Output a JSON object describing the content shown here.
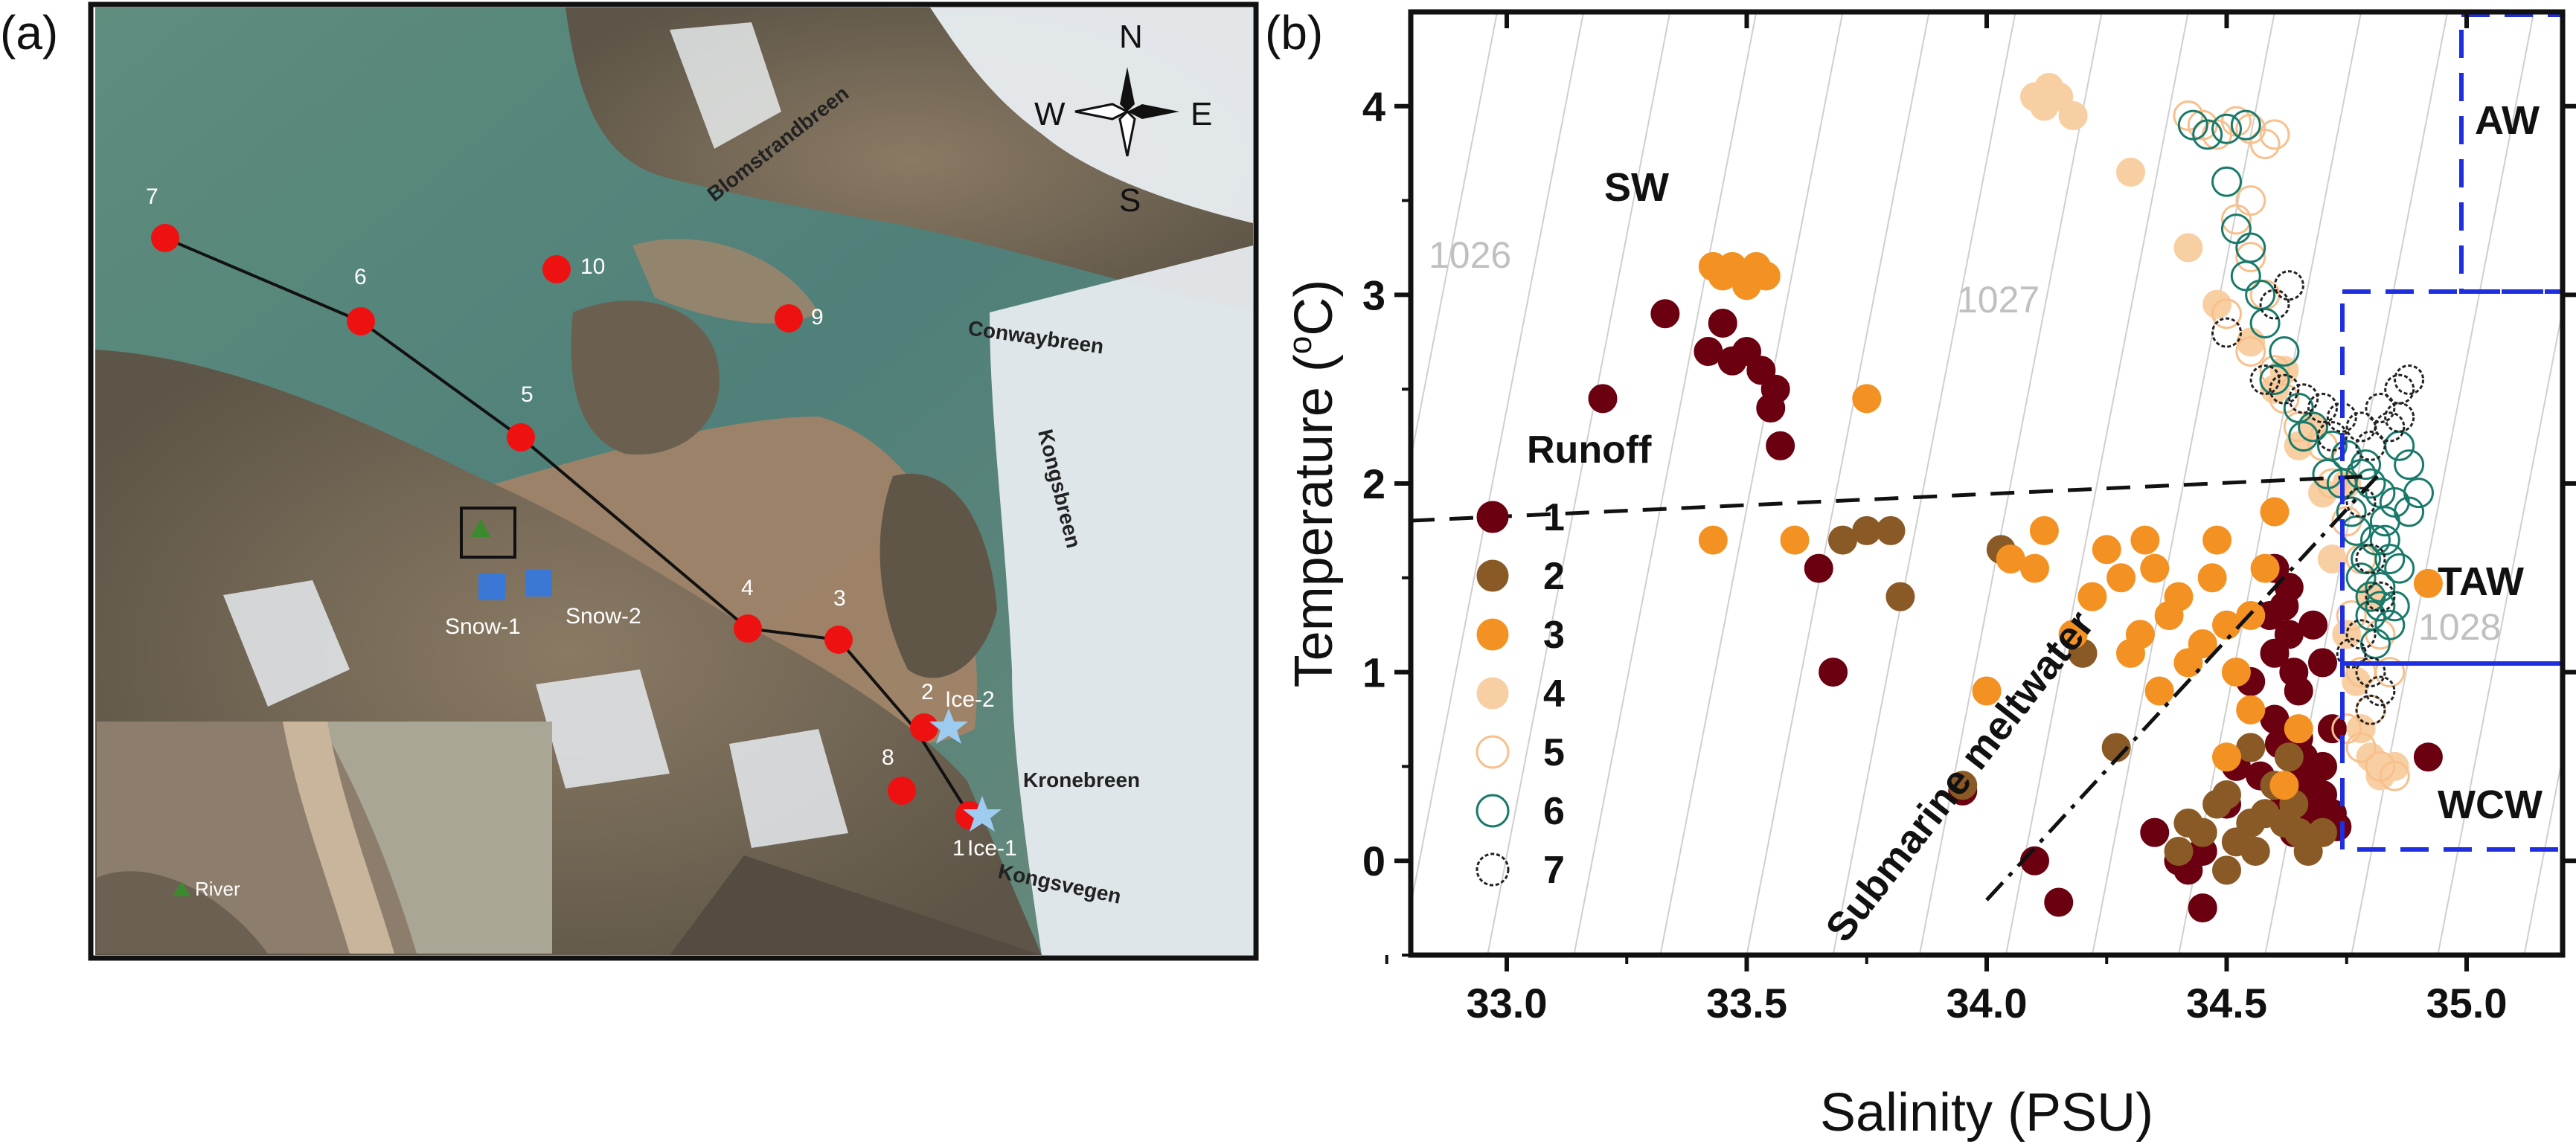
{
  "panel_a": {
    "label": "(a)",
    "compass": {
      "n": "N",
      "s": "S",
      "w": "W",
      "e": "E"
    },
    "glaciers": [
      "Blomstrandbreen",
      "Conwaybreen",
      "Kongsbreen",
      "Kronebreen",
      "Kongsvegen"
    ],
    "stations": [
      "7",
      "6",
      "10",
      "9",
      "5",
      "4",
      "3",
      "2",
      "8",
      "1"
    ],
    "ice_sites": [
      "Ice-2",
      "Ice-1"
    ],
    "snow_sites": [
      "Snow-1",
      "Snow-2"
    ],
    "river_label": "River",
    "colors": {
      "station": "#ee1111",
      "ice": "#9ecbf0",
      "snow": "#3b78d6",
      "river": "#3c8a2e"
    }
  },
  "panel_b": {
    "label": "(b)"
  },
  "chart_data": {
    "type": "scatter",
    "xlabel": "Salinity (PSU)",
    "ylabel": "Temperature (°C)",
    "ylabel_main": "Temperature (",
    "ylabel_sup": "o",
    "ylabel_end": "C)",
    "xlim": [
      32.8,
      35.2
    ],
    "ylim": [
      -0.5,
      4.5
    ],
    "xticks": [
      "33.0",
      "33.5",
      "34.0",
      "34.5",
      "35.0"
    ],
    "yticks": [
      "0",
      "1",
      "2",
      "3",
      "4"
    ],
    "legend_title": "Runoff",
    "regions": [
      "SW",
      "AW",
      "TAW",
      "WCW"
    ],
    "isopycnals": [
      "1026",
      "1027",
      "1028"
    ],
    "annotation": "Submarine meltwater",
    "series": [
      {
        "name": "1",
        "color": "#6b0010",
        "filled": true,
        "points": [
          [
            33.2,
            2.45
          ],
          [
            33.33,
            2.9
          ],
          [
            33.42,
            2.7
          ],
          [
            33.45,
            2.85
          ],
          [
            33.47,
            2.65
          ],
          [
            33.5,
            2.7
          ],
          [
            33.53,
            2.6
          ],
          [
            33.55,
            2.4
          ],
          [
            33.56,
            2.5
          ],
          [
            33.57,
            2.2
          ],
          [
            33.65,
            1.55
          ],
          [
            33.68,
            1.0
          ],
          [
            34.1,
            0.0
          ],
          [
            34.15,
            -0.22
          ],
          [
            33.95,
            0.37
          ],
          [
            34.35,
            0.15
          ],
          [
            34.4,
            0.0
          ],
          [
            34.42,
            -0.05
          ],
          [
            34.45,
            -0.25
          ],
          [
            34.45,
            0.05
          ],
          [
            34.5,
            0.3
          ],
          [
            34.52,
            0.5
          ],
          [
            34.55,
            0.6
          ],
          [
            34.55,
            0.95
          ],
          [
            34.6,
            1.1
          ],
          [
            34.6,
            1.55
          ],
          [
            34.62,
            1.35
          ],
          [
            34.63,
            1.2
          ],
          [
            34.65,
            0.9
          ],
          [
            34.65,
            0.5
          ],
          [
            34.67,
            0.3
          ],
          [
            34.68,
            0.2
          ],
          [
            34.7,
            0.5
          ],
          [
            34.72,
            0.7
          ],
          [
            34.72,
            0.25
          ],
          [
            34.65,
            0.65
          ],
          [
            34.68,
            1.25
          ],
          [
            34.7,
            1.05
          ],
          [
            34.66,
            0.55
          ],
          [
            34.64,
            0.15
          ],
          [
            34.62,
            0.3
          ],
          [
            34.57,
            0.45
          ],
          [
            34.6,
            0.75
          ],
          [
            34.59,
            1.3
          ],
          [
            34.63,
            1.45
          ],
          [
            34.92,
            0.55
          ],
          [
            34.67,
            0.42
          ],
          [
            34.7,
            0.35
          ],
          [
            34.73,
            0.18
          ],
          [
            34.64,
            1.0
          ],
          [
            34.61,
            0.62
          ]
        ]
      },
      {
        "name": "2",
        "color": "#8a5a26",
        "filled": true,
        "points": [
          [
            33.7,
            1.7
          ],
          [
            33.75,
            1.75
          ],
          [
            33.8,
            1.75
          ],
          [
            33.82,
            1.4
          ],
          [
            33.95,
            0.4
          ],
          [
            34.03,
            1.65
          ],
          [
            34.2,
            1.1
          ],
          [
            34.27,
            0.6
          ],
          [
            34.4,
            0.05
          ],
          [
            34.45,
            0.15
          ],
          [
            34.48,
            0.3
          ],
          [
            34.5,
            0.35
          ],
          [
            34.52,
            0.1
          ],
          [
            34.55,
            0.2
          ],
          [
            34.58,
            0.25
          ],
          [
            34.6,
            0.4
          ],
          [
            34.62,
            0.2
          ],
          [
            34.65,
            0.15
          ],
          [
            34.67,
            0.05
          ],
          [
            34.7,
            0.15
          ],
          [
            34.5,
            -0.05
          ],
          [
            34.55,
            0.6
          ],
          [
            34.42,
            0.2
          ],
          [
            34.56,
            0.05
          ],
          [
            34.63,
            0.55
          ],
          [
            34.64,
            0.3
          ]
        ]
      },
      {
        "name": "3",
        "color": "#f39222",
        "filled": true,
        "points": [
          [
            33.43,
            3.15
          ],
          [
            33.45,
            3.1
          ],
          [
            33.47,
            3.15
          ],
          [
            33.5,
            3.05
          ],
          [
            33.52,
            3.15
          ],
          [
            33.54,
            3.1
          ],
          [
            33.43,
            1.7
          ],
          [
            33.6,
            1.7
          ],
          [
            33.75,
            2.45
          ],
          [
            34.0,
            0.9
          ],
          [
            34.05,
            1.6
          ],
          [
            34.1,
            1.55
          ],
          [
            34.12,
            1.75
          ],
          [
            34.18,
            1.2
          ],
          [
            34.22,
            1.4
          ],
          [
            34.25,
            1.65
          ],
          [
            34.28,
            1.5
          ],
          [
            34.3,
            1.1
          ],
          [
            34.32,
            1.2
          ],
          [
            34.33,
            1.7
          ],
          [
            34.36,
            0.9
          ],
          [
            34.38,
            1.3
          ],
          [
            34.4,
            1.4
          ],
          [
            34.42,
            1.05
          ],
          [
            34.45,
            1.15
          ],
          [
            34.47,
            1.5
          ],
          [
            34.5,
            1.25
          ],
          [
            34.52,
            1.0
          ],
          [
            34.55,
            0.8
          ],
          [
            34.58,
            1.55
          ],
          [
            34.6,
            1.85
          ],
          [
            34.62,
            0.4
          ],
          [
            34.65,
            0.7
          ],
          [
            34.5,
            0.55
          ],
          [
            34.48,
            1.7
          ],
          [
            34.55,
            1.3
          ],
          [
            34.92,
            1.47
          ],
          [
            34.35,
            1.55
          ]
        ]
      },
      {
        "name": "4",
        "color": "#f8cfa2",
        "filled": true,
        "points": [
          [
            34.1,
            4.05
          ],
          [
            34.12,
            4.0
          ],
          [
            34.15,
            4.05
          ],
          [
            34.18,
            3.95
          ],
          [
            34.13,
            4.1
          ],
          [
            34.3,
            3.65
          ],
          [
            34.42,
            3.25
          ],
          [
            34.48,
            2.95
          ],
          [
            34.55,
            2.75
          ],
          [
            34.6,
            2.5
          ],
          [
            34.65,
            2.2
          ],
          [
            34.7,
            1.95
          ],
          [
            34.72,
            1.6
          ],
          [
            34.75,
            1.2
          ],
          [
            34.77,
            0.95
          ],
          [
            34.78,
            0.7
          ],
          [
            34.8,
            0.55
          ],
          [
            34.82,
            0.45
          ],
          [
            34.85,
            0.5
          ],
          [
            34.8,
            1.4
          ],
          [
            34.75,
            2.0
          ],
          [
            34.68,
            2.3
          ],
          [
            34.62,
            2.6
          ]
        ]
      },
      {
        "name": "5",
        "color": "#f7c08c",
        "filled": false,
        "points": [
          [
            34.42,
            3.95
          ],
          [
            34.45,
            3.9
          ],
          [
            34.48,
            3.85
          ],
          [
            34.52,
            3.92
          ],
          [
            34.55,
            3.88
          ],
          [
            34.58,
            3.8
          ],
          [
            34.6,
            3.85
          ],
          [
            34.55,
            3.5
          ],
          [
            34.52,
            3.4
          ],
          [
            34.55,
            3.2
          ],
          [
            34.58,
            3.0
          ],
          [
            34.5,
            2.9
          ],
          [
            34.55,
            2.7
          ],
          [
            34.6,
            2.6
          ],
          [
            34.62,
            2.45
          ],
          [
            34.65,
            2.3
          ],
          [
            34.7,
            2.2
          ],
          [
            34.72,
            2.0
          ],
          [
            34.75,
            1.8
          ],
          [
            34.78,
            1.6
          ],
          [
            34.8,
            1.4
          ],
          [
            34.82,
            1.2
          ],
          [
            34.84,
            1.0
          ],
          [
            34.8,
            0.8
          ],
          [
            34.78,
            0.6
          ],
          [
            34.82,
            0.5
          ],
          [
            34.85,
            0.45
          ],
          [
            34.75,
            0.7
          ],
          [
            34.78,
            1.0
          ],
          [
            34.76,
            1.3
          ]
        ]
      },
      {
        "name": "6",
        "color": "#1a7a6a",
        "filled": false,
        "points": [
          [
            34.43,
            3.9
          ],
          [
            34.46,
            3.85
          ],
          [
            34.5,
            3.88
          ],
          [
            34.54,
            3.9
          ],
          [
            34.5,
            3.6
          ],
          [
            34.52,
            3.35
          ],
          [
            34.55,
            3.25
          ],
          [
            34.54,
            3.1
          ],
          [
            34.57,
            3.0
          ],
          [
            34.58,
            2.85
          ],
          [
            34.62,
            2.7
          ],
          [
            34.6,
            2.55
          ],
          [
            34.65,
            2.4
          ],
          [
            34.68,
            2.3
          ],
          [
            34.72,
            2.2
          ],
          [
            34.75,
            2.15
          ],
          [
            34.78,
            2.05
          ],
          [
            34.8,
            2.0
          ],
          [
            34.82,
            1.95
          ],
          [
            34.85,
            1.9
          ],
          [
            34.88,
            2.1
          ],
          [
            34.86,
            2.2
          ],
          [
            34.83,
            1.8
          ],
          [
            34.81,
            1.7
          ],
          [
            34.79,
            1.6
          ],
          [
            34.78,
            1.5
          ],
          [
            34.8,
            1.4
          ],
          [
            34.82,
            1.35
          ],
          [
            34.84,
            1.25
          ],
          [
            34.81,
            1.15
          ],
          [
            34.83,
            1.7
          ],
          [
            34.86,
            1.55
          ],
          [
            34.88,
            1.85
          ],
          [
            34.9,
            1.95
          ],
          [
            34.76,
            1.85
          ],
          [
            34.74,
            2.0
          ],
          [
            34.71,
            2.05
          ],
          [
            34.77,
            1.75
          ],
          [
            34.82,
            1.45
          ],
          [
            34.8,
            1.3
          ],
          [
            34.85,
            1.35
          ],
          [
            34.84,
            1.6
          ],
          [
            34.79,
            2.1
          ],
          [
            34.66,
            2.25
          ]
        ]
      },
      {
        "name": "7",
        "color": "#222222",
        "filled": false,
        "points": [
          [
            34.63,
            3.05
          ],
          [
            34.6,
            2.95
          ],
          [
            34.5,
            2.8
          ],
          [
            34.58,
            2.55
          ],
          [
            34.62,
            2.5
          ],
          [
            34.66,
            2.45
          ],
          [
            34.7,
            2.4
          ],
          [
            34.74,
            2.35
          ],
          [
            34.78,
            2.3
          ],
          [
            34.82,
            2.4
          ],
          [
            34.86,
            2.5
          ],
          [
            34.88,
            2.55
          ],
          [
            34.84,
            2.3
          ],
          [
            34.8,
            2.2
          ],
          [
            34.78,
            1.9
          ],
          [
            34.8,
            1.6
          ],
          [
            34.82,
            1.4
          ],
          [
            34.78,
            1.2
          ],
          [
            34.8,
            1.0
          ],
          [
            34.82,
            0.9
          ],
          [
            34.8,
            0.8
          ],
          [
            34.76,
            1.1
          ],
          [
            34.72,
            2.25
          ],
          [
            34.86,
            2.35
          ]
        ]
      }
    ]
  }
}
